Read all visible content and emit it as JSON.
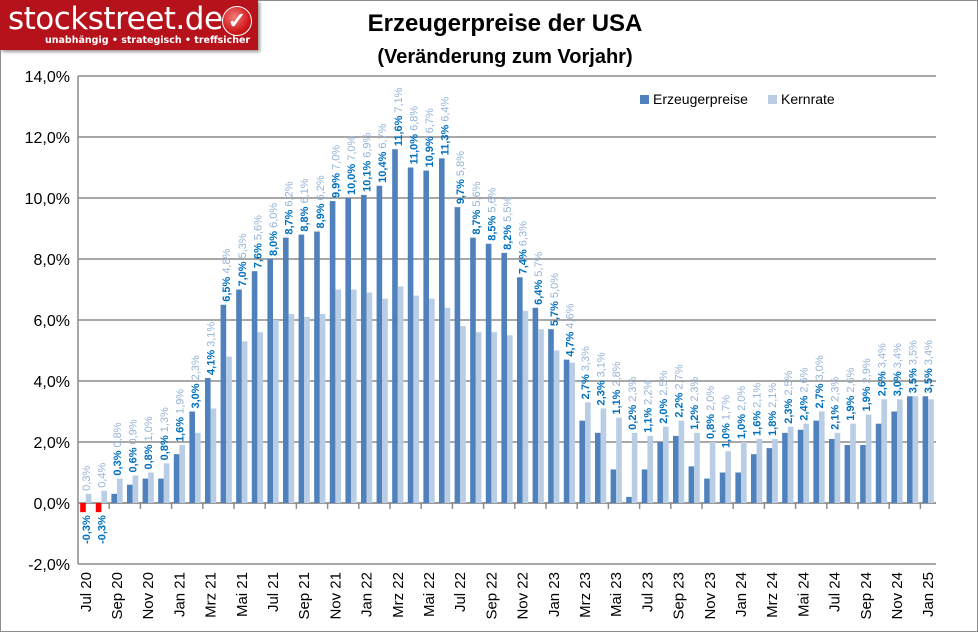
{
  "logo": {
    "text": "stockstreet.de",
    "tagline": "unabhängig • strategisch • treffsicher",
    "icon": "check-icon"
  },
  "chart_data": {
    "type": "bar",
    "title": "Erzeugerpreise der USA",
    "subtitle": "(Veränderung zum Vorjahr)",
    "xlabel": "",
    "ylabel": "",
    "ylim": [
      -2,
      14
    ],
    "y_ticks": [
      "-2,0%",
      "0,0%",
      "2,0%",
      "4,0%",
      "6,0%",
      "8,0%",
      "10,0%",
      "12,0%",
      "14,0%"
    ],
    "grid": true,
    "legend_position": "top-center",
    "categories": [
      "Jul 20",
      "Aug 20",
      "Sep 20",
      "Okt 20",
      "Nov 20",
      "Dez 20",
      "Jan 21",
      "Feb 21",
      "Mrz 21",
      "Apr 21",
      "Mai 21",
      "Jun 21",
      "Jul 21",
      "Aug 21",
      "Sep 21",
      "Okt 21",
      "Nov 21",
      "Dez 21",
      "Jan 22",
      "Feb 22",
      "Mrz 22",
      "Apr 22",
      "Mai 22",
      "Jun 22",
      "Jul 22",
      "Aug 22",
      "Sep 22",
      "Okt 22",
      "Nov 22",
      "Dez 22",
      "Jan 23",
      "Feb 23",
      "Mrz 23",
      "Apr 23",
      "Mai 23",
      "Jun 23",
      "Jul 23",
      "Aug 23",
      "Sep 23",
      "Okt 23",
      "Nov 23",
      "Dez 23",
      "Jan 24",
      "Feb 24",
      "Mrz 24",
      "Apr 24",
      "Mai 24",
      "Jun 24",
      "Jul 24",
      "Aug 24",
      "Sep 24",
      "Okt 24",
      "Nov 24",
      "Dez 24",
      "Jan 25"
    ],
    "x_tick_labels": [
      "Jul 20",
      "Sep 20",
      "Nov 20",
      "Jan 21",
      "Mrz 21",
      "Mai 21",
      "Jul 21",
      "Sep 21",
      "Nov 21",
      "Jan 22",
      "Mrz 22",
      "Mai 22",
      "Jul 22",
      "Sep 22",
      "Nov 22",
      "Jan 23",
      "Mrz 23",
      "Mai 23",
      "Jul 23",
      "Sep 23",
      "Nov 23",
      "Jan 24",
      "Mrz 24",
      "Mai 24",
      "Jul 24",
      "Sep 24",
      "Nov 24",
      "Jan 25"
    ],
    "series": [
      {
        "name": "Erzeugerpreise",
        "color": "#4f81bd",
        "negative_color": "#ff0000",
        "label_color": "#0070c0",
        "values": [
          -0.3,
          -0.3,
          0.3,
          0.6,
          0.8,
          0.8,
          1.6,
          3.0,
          4.1,
          6.5,
          7.0,
          7.6,
          8.0,
          8.7,
          8.8,
          8.9,
          9.9,
          10.0,
          10.1,
          10.4,
          11.6,
          11.0,
          10.9,
          11.3,
          9.7,
          8.7,
          8.5,
          8.2,
          7.4,
          6.4,
          5.7,
          4.7,
          2.7,
          2.3,
          1.1,
          0.2,
          1.1,
          2.0,
          2.2,
          1.2,
          0.8,
          1.0,
          1.0,
          1.6,
          1.8,
          2.3,
          2.4,
          2.7,
          2.1,
          1.9,
          1.9,
          2.6,
          3.0,
          3.5,
          3.5
        ]
      },
      {
        "name": "Kernrate",
        "color": "#b9cde5",
        "label_color": "#95b3d7",
        "values": [
          0.3,
          0.4,
          0.8,
          0.9,
          1.0,
          1.3,
          1.9,
          2.3,
          3.1,
          4.8,
          5.3,
          5.6,
          6.0,
          6.2,
          6.1,
          6.2,
          7.0,
          7.0,
          6.9,
          6.7,
          7.1,
          6.8,
          6.7,
          6.4,
          5.8,
          5.6,
          5.6,
          5.5,
          6.3,
          5.7,
          5.0,
          4.6,
          3.3,
          3.1,
          2.8,
          2.3,
          2.2,
          2.5,
          2.7,
          2.3,
          2.0,
          1.7,
          2.0,
          2.1,
          2.1,
          2.5,
          2.6,
          3.0,
          2.3,
          2.6,
          2.9,
          3.4,
          3.4,
          3.5,
          3.4
        ]
      }
    ]
  }
}
